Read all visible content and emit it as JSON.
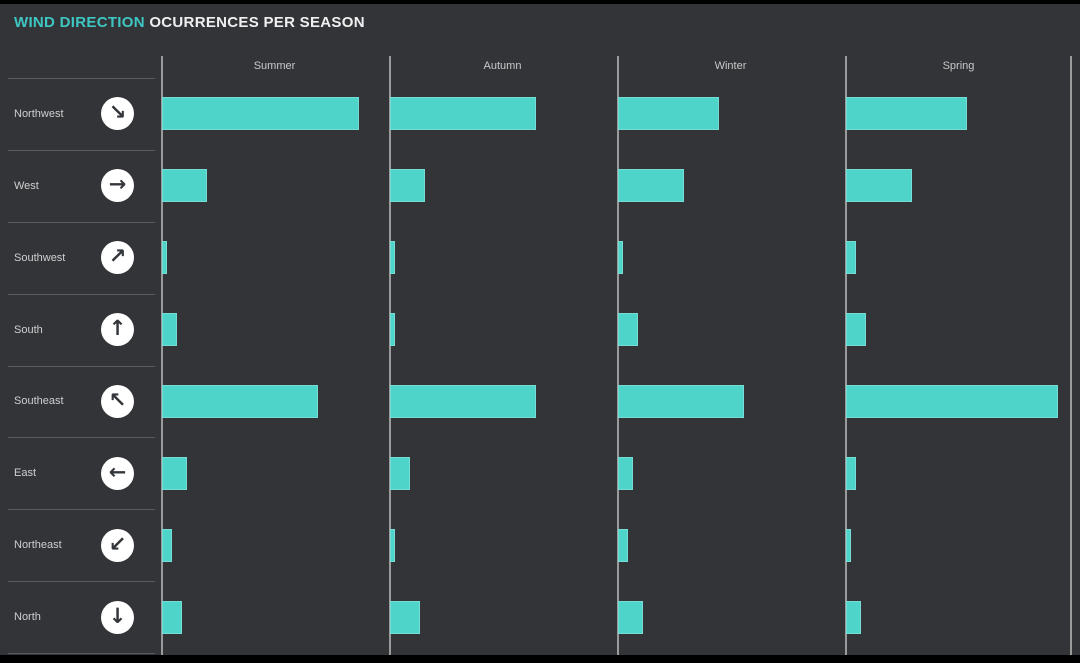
{
  "title": {
    "accent": "WIND DIRECTION",
    "rest": "OCURRENCES PER SEASON"
  },
  "colors": {
    "frame": "#000000",
    "background": "#333438",
    "bar_fill": "#4FD4C9",
    "accent_text": "#3EC7C2",
    "title_text": "#F0F0F0",
    "header_text": "#C9C9C9",
    "label_text": "#CFCFCF",
    "axis_line": "#9B9B9B",
    "separator_line": "#5B5B5B",
    "icon_circle": "#FFFFFF",
    "icon_arrow": "#33363A"
  },
  "chart_data": {
    "type": "bar",
    "orientation": "horizontal",
    "title": "WIND DIRECTION OCURRENCES PER SEASON",
    "facet_columns": [
      "Summer",
      "Autumn",
      "Winter",
      "Spring"
    ],
    "categories": [
      "Northwest",
      "West",
      "Southwest",
      "South",
      "Southeast",
      "East",
      "Northeast",
      "North"
    ],
    "category_icons": [
      {
        "name": "northwest-wind-arrow-southeast-icon",
        "glyph": "↘"
      },
      {
        "name": "west-wind-arrow-east-icon",
        "glyph": "→"
      },
      {
        "name": "southwest-wind-arrow-northeast-icon",
        "glyph": "↗"
      },
      {
        "name": "south-wind-arrow-north-icon",
        "glyph": "↑"
      },
      {
        "name": "southeast-wind-arrow-northwest-icon",
        "glyph": "↖"
      },
      {
        "name": "east-wind-arrow-west-icon",
        "glyph": "←"
      },
      {
        "name": "northeast-wind-arrow-southwest-icon",
        "glyph": "↙"
      },
      {
        "name": "north-wind-arrow-south-icon",
        "glyph": "↓"
      }
    ],
    "series": [
      {
        "name": "Summer",
        "values": [
          39,
          9,
          1,
          3,
          31,
          5,
          2,
          4
        ]
      },
      {
        "name": "Autumn",
        "values": [
          29,
          7,
          1,
          1,
          29,
          4,
          1,
          6
        ]
      },
      {
        "name": "Winter",
        "values": [
          20,
          13,
          1,
          4,
          25,
          3,
          2,
          5
        ]
      },
      {
        "name": "Spring",
        "values": [
          24,
          13,
          2,
          4,
          42,
          2,
          1,
          3
        ]
      }
    ],
    "xlim": [
      0,
      45
    ],
    "grid": false,
    "legend": false,
    "value_axis_labels_visible": false
  }
}
